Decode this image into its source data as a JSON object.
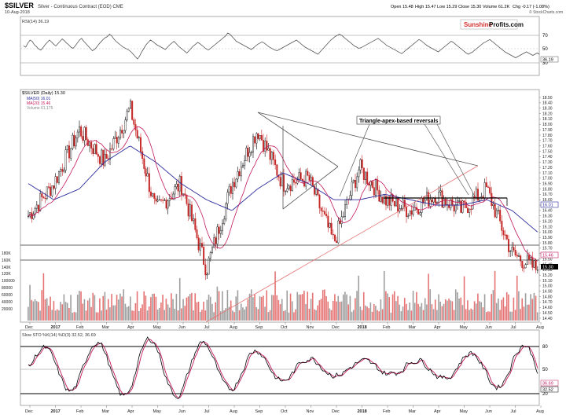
{
  "header": {
    "symbol": "$SILVER",
    "description": "Silver - Continuous Contract (EOD) CME",
    "date": "10-Aug-2018",
    "open": "Open 15.48",
    "high": "High 15.47",
    "low": "Low 15.29",
    "close": "Close 15.30",
    "volume": "Volume 61.2K",
    "chg": "Chg -0.17 (-1.08%)",
    "credit": "© StockCharts.com"
  },
  "brand": {
    "part1": "Sunshine",
    "part2": "Profits.com"
  },
  "rsi": {
    "label": "RSI(14) 36.19",
    "levels": [
      "70",
      "50",
      "30"
    ],
    "last_value_label": "36.19",
    "values": [
      50,
      48,
      55,
      60,
      58,
      52,
      49,
      45,
      43,
      47,
      52,
      56,
      60,
      57,
      53,
      50,
      54,
      58,
      62,
      59,
      55,
      52,
      48,
      46,
      50,
      55,
      60,
      63,
      58,
      54,
      50,
      46,
      42,
      44,
      48,
      53,
      57,
      61,
      64,
      66,
      70,
      67,
      62,
      58,
      55,
      52,
      49,
      47,
      45,
      43,
      40,
      36,
      32,
      28,
      33,
      40,
      46,
      52,
      56,
      60,
      58,
      55,
      52,
      50,
      48,
      46,
      44,
      48,
      52,
      55,
      58,
      54,
      50,
      47,
      44,
      41,
      38,
      42,
      46,
      50,
      53,
      56,
      54,
      51,
      48,
      45,
      43,
      46,
      49,
      52,
      55,
      58,
      61,
      64,
      67,
      72,
      70,
      66,
      62,
      58,
      56,
      54,
      52,
      50,
      48,
      46,
      44,
      47,
      50,
      53,
      55,
      57,
      55,
      52,
      49,
      47,
      45,
      43,
      42,
      44,
      46,
      48,
      50,
      52,
      54,
      56,
      58,
      60,
      57,
      54,
      51,
      48,
      46,
      44,
      42,
      40,
      38,
      36,
      40,
      44,
      48,
      52,
      56,
      60,
      63,
      66,
      68,
      70,
      68,
      65,
      62,
      59,
      56,
      53,
      50,
      48,
      46,
      47,
      49,
      51,
      53,
      55,
      57,
      59,
      61,
      63,
      60,
      57,
      54,
      51,
      49,
      47,
      45,
      43,
      41,
      39,
      37,
      40,
      43,
      46,
      49,
      52,
      55,
      58,
      61,
      59,
      56,
      53,
      50,
      48,
      46,
      44,
      42,
      40,
      43,
      46,
      49,
      52,
      55,
      58,
      56,
      53,
      50,
      47,
      44,
      41,
      38,
      36,
      38,
      40,
      43,
      46,
      49,
      52,
      55,
      57,
      59,
      61,
      58,
      55,
      52,
      49,
      46,
      43,
      40,
      38,
      36,
      34,
      32,
      30,
      32,
      34,
      36,
      38,
      40,
      38,
      36,
      34,
      36,
      38,
      36
    ]
  },
  "main": {
    "label": "$SILVER (Daily) 15.30",
    "ma50_label": "MA(50) 16.01",
    "ma20_label": "MA(20) 15.46",
    "volume_label": "Volume 61,175",
    "annotation": "Triangle-apex-based reversals",
    "price_ticks": [
      "18.50",
      "18.40",
      "18.30",
      "18.20",
      "18.10",
      "18.00",
      "17.90",
      "17.80",
      "17.70",
      "17.60",
      "17.50",
      "17.40",
      "17.30",
      "17.20",
      "17.10",
      "17.00",
      "16.90",
      "16.80",
      "16.70",
      "16.60",
      "16.50",
      "16.40",
      "16.30",
      "16.20",
      "16.10",
      "16.00",
      "15.90",
      "15.80",
      "15.70",
      "15.60",
      "15.50",
      "15.40",
      "15.30",
      "15.20",
      "15.10",
      "15.00",
      "14.90",
      "14.80",
      "14.70",
      "14.60",
      "14.50",
      "14.40"
    ],
    "volume_ticks": [
      "180K",
      "160K",
      "140K",
      "120K",
      "100000",
      "80000",
      "60000",
      "40000",
      "20000"
    ],
    "last_ma50": "16.01",
    "last_ma20": "15.46",
    "last_close": "15.30"
  },
  "sto": {
    "label": "Slow STO %K(14) %D(3) 32.52, 36.69",
    "levels": [
      "80",
      "50",
      "20"
    ],
    "last_k": "32.52",
    "last_d": "36.69"
  },
  "x_axis": {
    "labels": [
      "Dec",
      "2017",
      "Feb",
      "Mar",
      "Apr",
      "May",
      "Jun",
      "Jul",
      "Aug",
      "Sep",
      "Oct",
      "Nov",
      "Dec",
      "2018",
      "Feb",
      "Mar",
      "Apr",
      "May",
      "Jun",
      "Jul",
      "Aug"
    ]
  },
  "chart_data": {
    "type": "line",
    "title": "$SILVER (Daily)",
    "xlabel": "",
    "ylabel": "",
    "ylim": [
      14.4,
      18.55
    ],
    "x_range": [
      "2016-11",
      "2018-08"
    ],
    "series": [
      {
        "name": "$SILVER (Daily) 15.30",
        "x": [
          "2016-12",
          "2017-01",
          "2017-02",
          "2017-03",
          "2017-04",
          "2017-05",
          "2017-06",
          "2017-07",
          "2017-08",
          "2017-09",
          "2017-10",
          "2017-11",
          "2017-12",
          "2018-01",
          "2018-02",
          "2018-03",
          "2018-04",
          "2018-05",
          "2018-06",
          "2018-07",
          "2018-08"
        ],
        "values": [
          16.3,
          16.9,
          17.9,
          17.3,
          18.3,
          16.4,
          16.9,
          15.3,
          16.9,
          17.9,
          16.9,
          17.0,
          15.8,
          17.2,
          16.6,
          16.4,
          16.7,
          16.4,
          16.8,
          15.6,
          15.3
        ]
      },
      {
        "name": "MA(50) 16.01",
        "x": [
          "2016-12",
          "2017-01",
          "2017-02",
          "2017-03",
          "2017-04",
          "2017-05",
          "2017-06",
          "2017-07",
          "2017-08",
          "2017-09",
          "2017-10",
          "2017-11",
          "2017-12",
          "2018-01",
          "2018-02",
          "2018-03",
          "2018-04",
          "2018-05",
          "2018-06",
          "2018-07",
          "2018-08"
        ],
        "values": [
          16.9,
          16.6,
          16.8,
          17.3,
          17.6,
          17.3,
          16.9,
          16.6,
          16.4,
          16.8,
          17.1,
          16.9,
          16.6,
          16.6,
          16.7,
          16.6,
          16.5,
          16.5,
          16.6,
          16.4,
          16.0
        ]
      }
    ]
  },
  "colors": {
    "rsi_line": "#555555",
    "ma50": "#2b2b9c",
    "ma20": "#c2185b",
    "price_up": "#000000",
    "price_down": "#c62828",
    "volume_up": "#9e9e9e",
    "volume_down": "#e57373",
    "brand_red": "#d32f2f"
  }
}
